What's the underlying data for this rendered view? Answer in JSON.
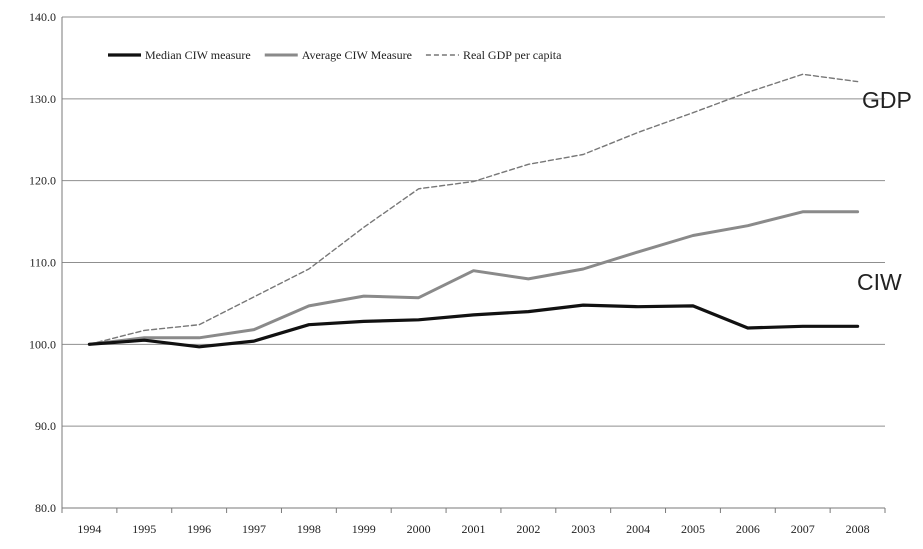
{
  "chart_data": {
    "type": "line",
    "title": "",
    "xlabel": "",
    "ylabel": "",
    "ylim": [
      80,
      140
    ],
    "yticks": [
      80,
      90,
      100,
      110,
      120,
      130,
      140
    ],
    "ytick_labels": [
      "80.0",
      "90.0",
      "100.0",
      "110.0",
      "120.0",
      "130.0",
      "140.0"
    ],
    "grid": true,
    "legend_position": "top-left",
    "categories": [
      "1994",
      "1995",
      "1996",
      "1997",
      "1998",
      "1999",
      "2000",
      "2001",
      "2002",
      "2003",
      "2004",
      "2005",
      "2006",
      "2007",
      "2008"
    ],
    "series": [
      {
        "name": "Median CIW measure",
        "color": "#111111",
        "style": "solid-thick",
        "values": [
          100.0,
          100.5,
          99.7,
          100.4,
          102.4,
          102.8,
          103.0,
          103.6,
          104.0,
          104.8,
          104.6,
          104.7,
          102.0,
          102.2,
          102.2
        ]
      },
      {
        "name": "Average CIW Measure",
        "color": "#8a8a8a",
        "style": "solid",
        "values": [
          100.0,
          100.8,
          100.8,
          101.8,
          104.7,
          105.9,
          105.7,
          109.0,
          108.0,
          109.2,
          111.3,
          113.3,
          114.5,
          116.2,
          116.2
        ]
      },
      {
        "name": "Real GDP per capita",
        "color": "#777777",
        "style": "dashed",
        "values": [
          100.0,
          101.7,
          102.4,
          105.8,
          109.2,
          114.3,
          119.0,
          119.9,
          122.0,
          123.2,
          125.9,
          128.3,
          130.8,
          133.0,
          132.1
        ]
      }
    ],
    "annotations": [
      {
        "text": "GDP",
        "near_series": 2
      },
      {
        "text": "CIW",
        "near_series": 1
      }
    ]
  }
}
